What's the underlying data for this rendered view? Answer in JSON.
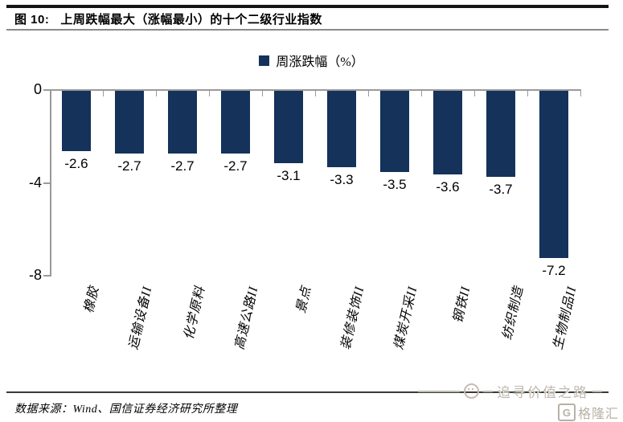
{
  "header": {
    "figure_label": "图 10:",
    "title": "上周跌幅最大（涨幅最小）的十个二级行业指数"
  },
  "chart_data": {
    "type": "bar",
    "title": "上周跌幅最大（涨幅最小）的十个二级行业指数",
    "legend_label": "周涨跌幅（%）",
    "legend_position": "top-center",
    "categories": [
      "橡胶",
      "运输设备II",
      "化学原料",
      "高速公路II",
      "景点",
      "装修装饰II",
      "煤炭开采II",
      "钢铁II",
      "纺织制造",
      "生物制品II"
    ],
    "values": [
      -2.6,
      -2.7,
      -2.7,
      -2.7,
      -3.1,
      -3.3,
      -3.5,
      -3.6,
      -3.7,
      -7.2
    ],
    "xlabel": "",
    "ylabel": "",
    "ylim": [
      -8,
      0
    ],
    "yticks": [
      0,
      -4,
      -8
    ],
    "grid": false,
    "bar_color": "#14325a",
    "axis_color": "#9a9a9a"
  },
  "footer": {
    "source": "数据来源：Wind、国信证券经济研究所整理"
  },
  "watermark": {
    "text": "追寻价值之路",
    "logo_letter": "G",
    "logo_text": "格隆汇"
  }
}
